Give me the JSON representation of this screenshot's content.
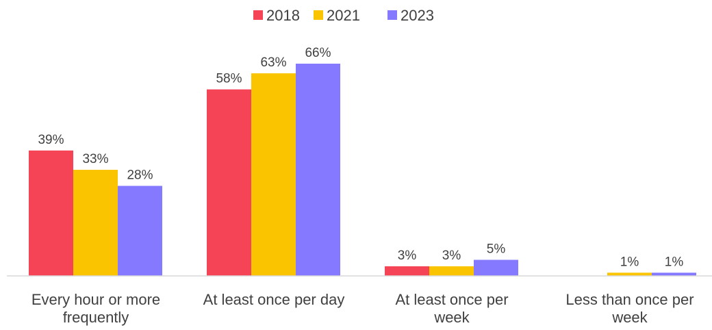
{
  "chart_data": {
    "type": "bar",
    "categories": [
      [
        "Every hour or more",
        "frequently"
      ],
      [
        "At least once per day"
      ],
      [
        "At least once per",
        "week"
      ],
      [
        "Less than once per",
        "week"
      ]
    ],
    "series": [
      {
        "name": "2018",
        "color": "#F44455",
        "values": [
          39,
          58,
          3,
          null
        ],
        "labels": [
          "39%",
          "58%",
          "3%",
          ""
        ]
      },
      {
        "name": "2021",
        "color": "#FAC400",
        "values": [
          33,
          63,
          3,
          1
        ],
        "labels": [
          "33%",
          "63%",
          "3%",
          "1%"
        ]
      },
      {
        "name": "2023",
        "color": "#8479FF",
        "values": [
          28,
          66,
          5,
          1
        ],
        "labels": [
          "28%",
          "66%",
          "5%",
          "1%"
        ]
      }
    ],
    "ylim": [
      0,
      66
    ],
    "grid": false,
    "legend_position": "top",
    "axis_color": "#D9D9D9"
  }
}
